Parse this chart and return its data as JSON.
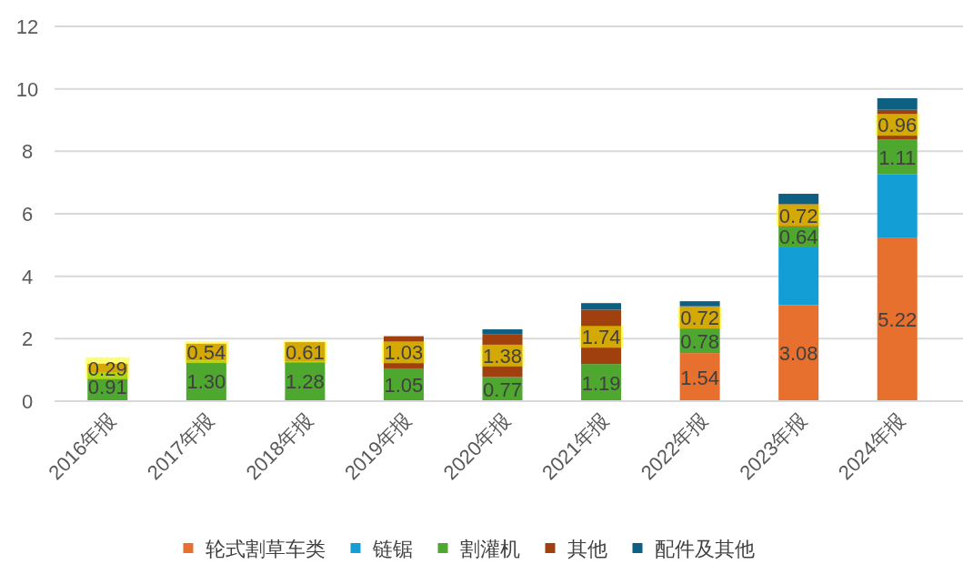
{
  "chart_data": {
    "type": "bar",
    "stacked": true,
    "categories": [
      "2016年报",
      "2017年报",
      "2018年报",
      "2019年报",
      "2020年报",
      "2021年报",
      "2022年报",
      "2023年报",
      "2024年报"
    ],
    "series": [
      {
        "name": "轮式割草车类",
        "color": "#e8702f",
        "values": [
          null,
          null,
          null,
          null,
          null,
          null,
          1.54,
          3.08,
          5.22
        ],
        "value_labels": [
          null,
          null,
          null,
          null,
          null,
          null,
          "1.54",
          "3.08",
          "5.22"
        ]
      },
      {
        "name": "链锯",
        "color": "#139fd6",
        "values": [
          null,
          null,
          null,
          null,
          null,
          null,
          null,
          1.87,
          2.04
        ]
      },
      {
        "name": "割灌机",
        "color": "#4ea72e",
        "values": [
          0.91,
          1.3,
          1.28,
          1.05,
          0.77,
          1.19,
          0.78,
          0.64,
          1.11
        ],
        "value_labels": [
          "0.91",
          "1.30",
          "1.28",
          "1.05",
          "0.77",
          "1.19",
          "0.78",
          "0.64",
          "1.11"
        ]
      },
      {
        "name": "其他",
        "color": "#a0400e",
        "values": [
          0.29,
          0.54,
          0.61,
          1.03,
          1.38,
          1.74,
          0.72,
          0.72,
          0.96
        ],
        "value_labels": [
          "0.29",
          "0.54",
          "0.61",
          "1.03",
          "1.38",
          "1.74",
          "0.72",
          "0.72",
          "0.96"
        ]
      },
      {
        "name": "配件及其他",
        "color": "#0e6082",
        "values": [
          null,
          null,
          null,
          null,
          0.15,
          0.21,
          0.16,
          0.33,
          0.37
        ]
      }
    ],
    "ylim": [
      0,
      12
    ],
    "yticks": [
      0,
      2,
      4,
      6,
      8,
      10,
      12
    ],
    "grid": "y",
    "legend": "bottom"
  }
}
